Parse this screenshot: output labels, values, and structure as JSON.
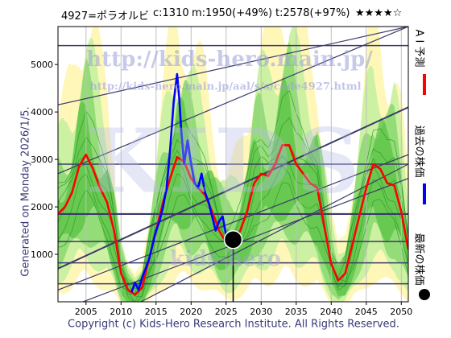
{
  "header": {
    "code_name": "4927=ポラオルビ",
    "current": "c:1310",
    "mid": "m:1950(+49%)",
    "target": "t:2578(+97%)",
    "stars": "★★★★☆"
  },
  "side_label": "Generated on Monday 2026/1/5.",
  "copyright": "Copyright (c) Kids-Hero Research Institute. All Rights Reserved.",
  "watermarks": {
    "url_main": "http://kids-hero.main.jp/",
    "url_page": "http://kids-hero.main.jp/aal/s/s/code4927.html",
    "big": "KIDS",
    "bottom": "kids-hero"
  },
  "legend": {
    "ai_label": "A I 予測",
    "past_label": "過去の株価",
    "latest_label": "最新の株価",
    "ai_color": "#ff0000",
    "past_color": "#0000ff",
    "latest_color": "#000000"
  },
  "chart_data": {
    "type": "line",
    "title": "",
    "xlabel": "",
    "ylabel": "",
    "xlim": [
      2001,
      2051
    ],
    "ylim": [
      0,
      5800
    ],
    "x_ticks": [
      2005,
      2010,
      2015,
      2020,
      2025,
      2030,
      2035,
      2040,
      2045,
      2050
    ],
    "y_ticks": [
      1000,
      2000,
      3000,
      4000,
      5000
    ],
    "horizontal_levels": [
      5400,
      2900,
      1850,
      1270,
      820,
      380
    ],
    "latest_point": {
      "x": 2026.0,
      "y": 1310
    },
    "series": [
      {
        "name": "A I 予測",
        "color": "#ff0000",
        "x": [
          2001,
          2002,
          2003,
          2004,
          2005,
          2006,
          2007,
          2008,
          2009,
          2010,
          2011,
          2012,
          2013,
          2014,
          2015,
          2016,
          2017,
          2018,
          2019,
          2020,
          2021,
          2022,
          2023,
          2024,
          2025,
          2026,
          2027,
          2028,
          2029,
          2030,
          2031,
          2032,
          2033,
          2034,
          2035,
          2036,
          2037,
          2038,
          2039,
          2040,
          2041,
          2042,
          2043,
          2044,
          2045,
          2046,
          2047,
          2048,
          2049,
          2050,
          2051
        ],
        "values": [
          1850,
          2000,
          2300,
          2850,
          3100,
          2800,
          2400,
          2100,
          1500,
          600,
          250,
          150,
          300,
          900,
          1500,
          2100,
          2600,
          3050,
          2950,
          2600,
          2400,
          2250,
          1900,
          1500,
          1250,
          1310,
          1500,
          1900,
          2500,
          2700,
          2650,
          2900,
          3300,
          3300,
          2900,
          2700,
          2500,
          2400,
          1600,
          800,
          450,
          600,
          1200,
          1800,
          2400,
          2900,
          2800,
          2500,
          2450,
          1900,
          1100
        ]
      },
      {
        "name": "過去の株価",
        "color": "#0000ff",
        "x": [
          2011.5,
          2012,
          2012.5,
          2013,
          2013.5,
          2014,
          2014.5,
          2015,
          2015.5,
          2016,
          2016.5,
          2017,
          2017.5,
          2018,
          2018.3,
          2018.6,
          2019,
          2019.5,
          2020,
          2020.5,
          2021,
          2021.5,
          2022,
          2022.5,
          2023,
          2023.5,
          2024,
          2024.5,
          2025,
          2025.5,
          2026
        ],
        "values": [
          200,
          400,
          250,
          500,
          700,
          900,
          1200,
          1500,
          1700,
          2000,
          2400,
          3200,
          4200,
          4800,
          4300,
          3600,
          2900,
          3400,
          2900,
          2500,
          2400,
          2700,
          2300,
          2100,
          1800,
          1500,
          1700,
          1800,
          1400,
          1350,
          1310
        ]
      }
    ],
    "grid": true,
    "legend_position": "right-vertical"
  }
}
